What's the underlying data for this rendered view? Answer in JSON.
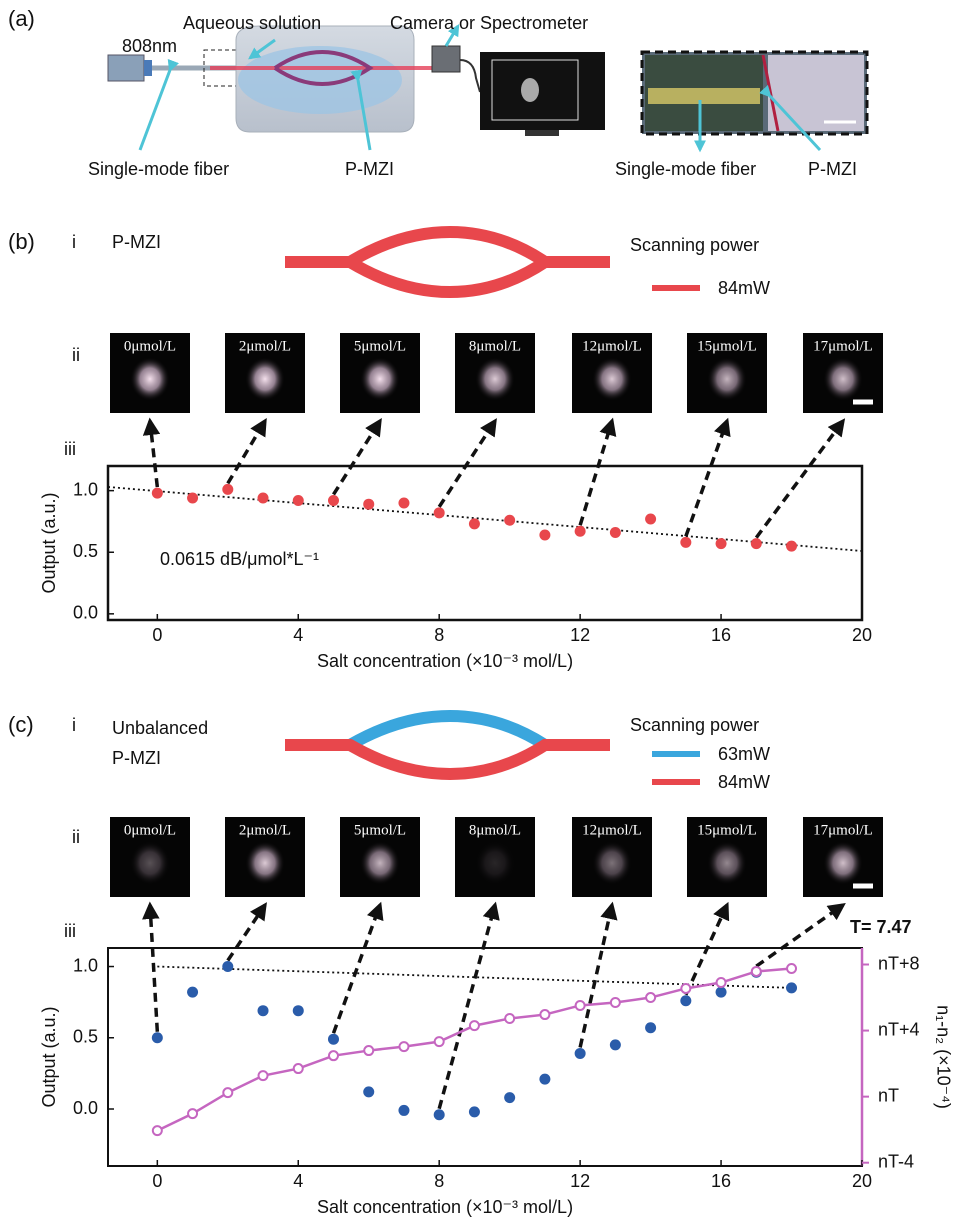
{
  "panel_a": {
    "label": "(a)",
    "labels": [
      "808nm",
      "Aqueous solution",
      "Camera or Spectrometer",
      "Single-mode fiber",
      "P-MZI",
      "Single-mode fiber",
      "P-MZI"
    ]
  },
  "panel_b": {
    "label": "(b)",
    "sub_labels": [
      "i",
      "ii",
      "iii"
    ],
    "device": [
      "P-MZI"
    ],
    "legend_title": "Scanning power",
    "legend": [
      {
        "name": "84mW",
        "color": "#e8474c"
      }
    ],
    "images": [
      "0μmol/L",
      "2μmol/L",
      "5μmol/L",
      "8μmol/L",
      "12μmol/L",
      "15μmol/L",
      "17μmol/L"
    ]
  },
  "panel_c": {
    "label": "(c)",
    "sub_labels": [
      "i",
      "ii",
      "iii"
    ],
    "device": [
      "Unbalanced",
      "P-MZI"
    ],
    "legend_title": "Scanning power",
    "legend": [
      {
        "name": "63mW",
        "color": "#3aa6dd"
      },
      {
        "name": "84mW",
        "color": "#e8474c"
      }
    ],
    "images": [
      "0μmol/L",
      "2μmol/L",
      "5μmol/L",
      "8μmol/L",
      "12μmol/L",
      "15μmol/L",
      "17μmol/L"
    ]
  },
  "chart_data": [
    {
      "type": "scatter",
      "xlabel": "Salt concentration (×10⁻³ mol/L)",
      "ylabel": "Output (a.u.)",
      "annotation": "0.0615 dB/μmol*L⁻¹",
      "x": [
        0,
        1,
        2,
        3,
        4,
        5,
        6,
        7,
        8,
        9,
        10,
        11,
        12,
        13,
        14,
        15,
        16,
        17,
        18
      ],
      "series": [
        {
          "color": "#e8474c",
          "values": [
            0.98,
            0.94,
            1.01,
            0.94,
            0.92,
            0.92,
            0.89,
            0.9,
            0.82,
            0.73,
            0.76,
            0.64,
            0.67,
            0.66,
            0.77,
            0.58,
            0.57,
            0.57,
            0.55
          ]
        }
      ],
      "fit": {
        "x": [
          -1.4,
          20
        ],
        "values": [
          1.03,
          0.51
        ]
      },
      "xlim": [
        -1.4,
        20
      ],
      "xticks": [
        0,
        4,
        8,
        12,
        16,
        20
      ],
      "ylim": [
        -0.05,
        1.2
      ],
      "yticks": [
        {
          "value": 0,
          "label": "0.0"
        },
        {
          "value": 0.5,
          "label": "0.5"
        },
        {
          "value": 1,
          "label": "1.0"
        }
      ]
    },
    {
      "type": "scatter",
      "xlabel": "Salt concentration (×10⁻³ mol/L)",
      "ylabel": "Output (a.u.)",
      "y2label": "n₁-n₂ (×10⁻⁴)",
      "y2annotation": "T= 7.47",
      "x": [
        0,
        1,
        2,
        3,
        4,
        5,
        6,
        7,
        8,
        9,
        10,
        11,
        12,
        13,
        14,
        15,
        16,
        17,
        18
      ],
      "series": [
        {
          "color": "#2a5caa",
          "values": [
            0.5,
            0.82,
            1.0,
            0.69,
            0.69,
            0.49,
            0.12,
            -0.01,
            -0.04,
            -0.02,
            0.08,
            0.21,
            0.39,
            0.45,
            0.57,
            0.76,
            0.82,
            0.96,
            0.85
          ]
        },
        {
          "color": "#c566c0",
          "axis": "y2",
          "line": true,
          "values": [
            -2.06,
            -1.03,
            0.24,
            1.27,
            1.7,
            2.48,
            2.79,
            3.03,
            3.33,
            4.3,
            4.73,
            4.97,
            5.52,
            5.7,
            6.0,
            6.55,
            6.91,
            7.58,
            7.76
          ]
        }
      ],
      "fit": {
        "x": [
          0,
          18
        ],
        "values": [
          1.0,
          0.85
        ]
      },
      "xlim": [
        -1.4,
        20
      ],
      "xticks": [
        0,
        4,
        8,
        12,
        16,
        20
      ],
      "ylim": [
        -0.4,
        1.13
      ],
      "yticks": [
        {
          "value": 0,
          "label": "0.0"
        },
        {
          "value": 0.5,
          "label": "0.5"
        },
        {
          "value": 1,
          "label": "1.0"
        }
      ],
      "y2lim": [
        -4.2,
        9
      ],
      "y2ticks": [
        {
          "value": -4,
          "label": "nT-4"
        },
        {
          "value": 0,
          "label": "nT"
        },
        {
          "value": 4,
          "label": "nT+4"
        },
        {
          "value": 8,
          "label": "nT+8"
        }
      ]
    }
  ]
}
